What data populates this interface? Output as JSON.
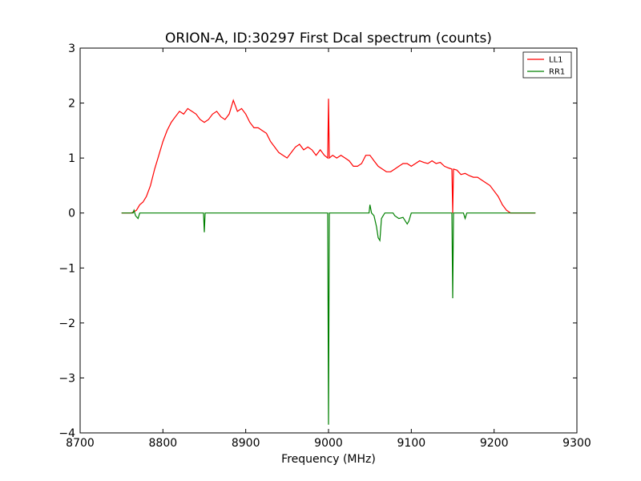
{
  "chart_data": {
    "type": "line",
    "title": "ORION-A, ID:30297 First Dcal spectrum (counts)",
    "xlabel": "Frequency (MHz)",
    "ylabel": "",
    "xlim": [
      8700,
      9300
    ],
    "ylim": [
      -4,
      3
    ],
    "xticks": [
      8700,
      8800,
      8900,
      9000,
      9100,
      9200,
      9300
    ],
    "yticks": [
      -4,
      -3,
      -2,
      -1,
      0,
      1,
      2,
      3
    ],
    "grid": false,
    "legend_position": "top-right",
    "series": [
      {
        "name": "LL1",
        "color": "#ff0000",
        "points": [
          [
            8750,
            0.0
          ],
          [
            8762,
            0.0
          ],
          [
            8768,
            0.05
          ],
          [
            8772,
            0.15
          ],
          [
            8776,
            0.2
          ],
          [
            8780,
            0.3
          ],
          [
            8785,
            0.5
          ],
          [
            8790,
            0.8
          ],
          [
            8795,
            1.05
          ],
          [
            8800,
            1.3
          ],
          [
            8805,
            1.5
          ],
          [
            8810,
            1.65
          ],
          [
            8815,
            1.75
          ],
          [
            8820,
            1.85
          ],
          [
            8825,
            1.8
          ],
          [
            8830,
            1.9
          ],
          [
            8835,
            1.85
          ],
          [
            8840,
            1.8
          ],
          [
            8845,
            1.7
          ],
          [
            8850,
            1.65
          ],
          [
            8855,
            1.7
          ],
          [
            8860,
            1.8
          ],
          [
            8865,
            1.85
          ],
          [
            8870,
            1.75
          ],
          [
            8875,
            1.7
          ],
          [
            8880,
            1.8
          ],
          [
            8885,
            2.05
          ],
          [
            8890,
            1.85
          ],
          [
            8895,
            1.9
          ],
          [
            8900,
            1.8
          ],
          [
            8905,
            1.65
          ],
          [
            8910,
            1.55
          ],
          [
            8915,
            1.55
          ],
          [
            8920,
            1.5
          ],
          [
            8925,
            1.45
          ],
          [
            8930,
            1.3
          ],
          [
            8935,
            1.2
          ],
          [
            8940,
            1.1
          ],
          [
            8945,
            1.05
          ],
          [
            8950,
            1.0
          ],
          [
            8955,
            1.1
          ],
          [
            8960,
            1.2
          ],
          [
            8965,
            1.25
          ],
          [
            8970,
            1.15
          ],
          [
            8975,
            1.2
          ],
          [
            8980,
            1.15
          ],
          [
            8985,
            1.05
          ],
          [
            8990,
            1.15
          ],
          [
            8995,
            1.05
          ],
          [
            8999,
            1.0
          ],
          [
            9000,
            2.08
          ],
          [
            9001,
            1.0
          ],
          [
            9005,
            1.05
          ],
          [
            9010,
            1.0
          ],
          [
            9015,
            1.05
          ],
          [
            9020,
            1.0
          ],
          [
            9025,
            0.95
          ],
          [
            9030,
            0.85
          ],
          [
            9035,
            0.85
          ],
          [
            9040,
            0.9
          ],
          [
            9045,
            1.05
          ],
          [
            9050,
            1.05
          ],
          [
            9055,
            0.95
          ],
          [
            9060,
            0.85
          ],
          [
            9065,
            0.8
          ],
          [
            9070,
            0.75
          ],
          [
            9075,
            0.75
          ],
          [
            9080,
            0.8
          ],
          [
            9085,
            0.85
          ],
          [
            9090,
            0.9
          ],
          [
            9095,
            0.9
          ],
          [
            9100,
            0.85
          ],
          [
            9105,
            0.9
          ],
          [
            9110,
            0.95
          ],
          [
            9115,
            0.92
          ],
          [
            9120,
            0.9
          ],
          [
            9125,
            0.95
          ],
          [
            9130,
            0.9
          ],
          [
            9135,
            0.92
          ],
          [
            9140,
            0.85
          ],
          [
            9145,
            0.82
          ],
          [
            9149,
            0.8
          ],
          [
            9150,
            0.0
          ],
          [
            9151,
            0.8
          ],
          [
            9155,
            0.78
          ],
          [
            9160,
            0.7
          ],
          [
            9165,
            0.72
          ],
          [
            9170,
            0.68
          ],
          [
            9175,
            0.65
          ],
          [
            9180,
            0.65
          ],
          [
            9185,
            0.6
          ],
          [
            9190,
            0.55
          ],
          [
            9195,
            0.5
          ],
          [
            9200,
            0.4
          ],
          [
            9205,
            0.3
          ],
          [
            9210,
            0.15
          ],
          [
            9215,
            0.05
          ],
          [
            9220,
            0.0
          ],
          [
            9250,
            0.0
          ]
        ]
      },
      {
        "name": "RR1",
        "color": "#008000",
        "points": [
          [
            8750,
            0.0
          ],
          [
            8764,
            0.0
          ],
          [
            8765,
            0.05
          ],
          [
            8767,
            -0.05
          ],
          [
            8770,
            -0.1
          ],
          [
            8772,
            0.0
          ],
          [
            8849,
            0.0
          ],
          [
            8850,
            -0.35
          ],
          [
            8851,
            0.0
          ],
          [
            8999,
            0.0
          ],
          [
            9000,
            -3.85
          ],
          [
            9001,
            0.0
          ],
          [
            9049,
            0.0
          ],
          [
            9050,
            0.15
          ],
          [
            9052,
            0.0
          ],
          [
            9055,
            -0.05
          ],
          [
            9058,
            -0.25
          ],
          [
            9060,
            -0.45
          ],
          [
            9062,
            -0.5
          ],
          [
            9064,
            -0.1
          ],
          [
            9066,
            -0.05
          ],
          [
            9068,
            0.0
          ],
          [
            9078,
            0.0
          ],
          [
            9080,
            -0.05
          ],
          [
            9085,
            -0.1
          ],
          [
            9090,
            -0.08
          ],
          [
            9095,
            -0.2
          ],
          [
            9097,
            -0.15
          ],
          [
            9100,
            0.0
          ],
          [
            9149,
            0.0
          ],
          [
            9150,
            -1.55
          ],
          [
            9151,
            0.0
          ],
          [
            9163,
            0.0
          ],
          [
            9165,
            -0.1
          ],
          [
            9167,
            0.0
          ],
          [
            9250,
            0.0
          ]
        ]
      }
    ]
  }
}
